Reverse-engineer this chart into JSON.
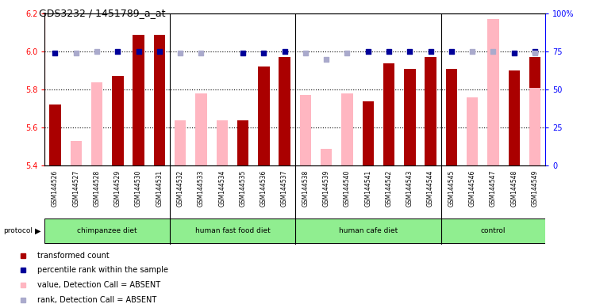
{
  "title": "GDS3232 / 1451789_a_at",
  "samples": [
    "GSM144526",
    "GSM144527",
    "GSM144528",
    "GSM144529",
    "GSM144530",
    "GSM144531",
    "GSM144532",
    "GSM144533",
    "GSM144534",
    "GSM144535",
    "GSM144536",
    "GSM144537",
    "GSM144538",
    "GSM144539",
    "GSM144540",
    "GSM144541",
    "GSM144542",
    "GSM144543",
    "GSM144544",
    "GSM144545",
    "GSM144546",
    "GSM144547",
    "GSM144548",
    "GSM144549"
  ],
  "bar_values": [
    5.72,
    null,
    null,
    5.87,
    6.09,
    6.09,
    null,
    null,
    null,
    5.64,
    5.92,
    5.97,
    null,
    null,
    null,
    5.74,
    5.94,
    5.91,
    5.97,
    5.91,
    null,
    null,
    5.9,
    5.97
  ],
  "pink_values": [
    null,
    5.53,
    5.84,
    null,
    null,
    null,
    5.64,
    5.78,
    5.64,
    null,
    null,
    null,
    5.77,
    5.49,
    5.78,
    null,
    null,
    null,
    null,
    null,
    5.76,
    6.17,
    null,
    5.81
  ],
  "blue_pct": [
    74,
    null,
    null,
    75,
    75,
    75,
    null,
    null,
    null,
    74,
    74,
    75,
    null,
    null,
    null,
    75,
    75,
    75,
    75,
    75,
    null,
    null,
    74,
    75
  ],
  "lblue_pct": [
    null,
    74,
    75,
    null,
    null,
    null,
    74,
    74,
    null,
    null,
    null,
    null,
    74,
    70,
    74,
    null,
    null,
    null,
    null,
    null,
    75,
    75,
    null,
    74
  ],
  "groups": [
    {
      "label": "chimpanzee diet",
      "start": 0,
      "end": 5
    },
    {
      "label": "human fast food diet",
      "start": 6,
      "end": 11
    },
    {
      "label": "human cafe diet",
      "start": 12,
      "end": 18
    },
    {
      "label": "control",
      "start": 19,
      "end": 23
    }
  ],
  "group_seps": [
    5.5,
    11.5,
    18.5
  ],
  "ylim_left": [
    5.4,
    6.2
  ],
  "ylim_right": [
    0,
    100
  ],
  "yticks_left": [
    5.4,
    5.6,
    5.8,
    6.0,
    6.2
  ],
  "yticks_right": [
    0,
    25,
    50,
    75,
    100
  ],
  "ytick_right_labels": [
    "0",
    "25",
    "50",
    "75",
    "100%"
  ],
  "hgrid": [
    5.6,
    5.8,
    6.0
  ],
  "bar_color": "#AA0000",
  "pink_color": "#FFB6C1",
  "blue_color": "#000099",
  "lblue_color": "#AAAACC",
  "gray_bg": "#C8C8C8",
  "green_bg": "#90EE90",
  "bar_width": 0.55,
  "dot_size": 18
}
